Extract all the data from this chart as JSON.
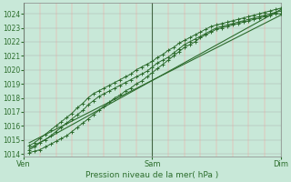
{
  "xlabel": "Pression niveau de la mer( hPa )",
  "bg_color": "#c8e8d8",
  "plot_bg_color": "#c8e8d8",
  "line_color": "#2d6b2d",
  "ylim": [
    1013.8,
    1024.8
  ],
  "yticks": [
    1014,
    1015,
    1016,
    1017,
    1018,
    1019,
    1020,
    1021,
    1022,
    1023,
    1024
  ],
  "day_labels": [
    "Ven",
    "Sam",
    "Dim"
  ],
  "day_positions": [
    0,
    48,
    96
  ],
  "total_hours": 96,
  "lines": [
    {
      "x": [
        2,
        4,
        6,
        8,
        10,
        12,
        14,
        16,
        18,
        20,
        22,
        24,
        26,
        28,
        30,
        32,
        34,
        36,
        38,
        40,
        42,
        44,
        46,
        48,
        50,
        52,
        54,
        56,
        58,
        60,
        62,
        64,
        66,
        68,
        70,
        72,
        74,
        76,
        78,
        80,
        82,
        84,
        86,
        88,
        90,
        92,
        94,
        96
      ],
      "y": [
        1014.3,
        1014.5,
        1014.8,
        1015.0,
        1015.3,
        1015.6,
        1015.9,
        1016.2,
        1016.5,
        1016.8,
        1017.1,
        1017.5,
        1017.8,
        1018.1,
        1018.3,
        1018.5,
        1018.7,
        1018.9,
        1019.1,
        1019.3,
        1019.5,
        1019.7,
        1019.9,
        1020.2,
        1020.5,
        1020.7,
        1020.9,
        1021.2,
        1021.5,
        1021.8,
        1022.0,
        1022.2,
        1022.4,
        1022.6,
        1022.8,
        1023.0,
        1023.1,
        1023.2,
        1023.3,
        1023.4,
        1023.5,
        1023.6,
        1023.7,
        1023.8,
        1023.9,
        1024.0,
        1024.1,
        1024.2
      ],
      "markers": true
    },
    {
      "x": [
        2,
        4,
        6,
        8,
        10,
        12,
        14,
        16,
        18,
        20,
        22,
        24,
        26,
        28,
        30,
        32,
        34,
        36,
        38,
        40,
        42,
        44,
        46,
        48,
        50,
        52,
        54,
        56,
        58,
        60,
        62,
        64,
        66,
        68,
        70,
        72,
        74,
        76,
        78,
        80,
        82,
        84,
        86,
        88,
        90,
        92,
        94,
        96
      ],
      "y": [
        1014.6,
        1014.8,
        1015.1,
        1015.4,
        1015.7,
        1016.0,
        1016.3,
        1016.6,
        1016.9,
        1017.3,
        1017.6,
        1018.0,
        1018.3,
        1018.5,
        1018.7,
        1018.9,
        1019.1,
        1019.3,
        1019.5,
        1019.7,
        1020.0,
        1020.2,
        1020.4,
        1020.6,
        1020.9,
        1021.1,
        1021.4,
        1021.6,
        1021.9,
        1022.1,
        1022.3,
        1022.5,
        1022.7,
        1022.9,
        1023.1,
        1023.2,
        1023.3,
        1023.4,
        1023.5,
        1023.6,
        1023.7,
        1023.8,
        1023.9,
        1024.0,
        1024.1,
        1024.2,
        1024.3,
        1024.4
      ],
      "markers": true
    },
    {
      "x": [
        2,
        4,
        6,
        8,
        10,
        12,
        14,
        16,
        18,
        20,
        22,
        24,
        26,
        28,
        30,
        32,
        34,
        36,
        38,
        40,
        42,
        44,
        46,
        48,
        50,
        52,
        54,
        56,
        58,
        60,
        62,
        64,
        66,
        68,
        70,
        72,
        74,
        76,
        78,
        80,
        82,
        84,
        86,
        88,
        90,
        92,
        94,
        96
      ],
      "y": [
        1014.1,
        1014.2,
        1014.3,
        1014.5,
        1014.7,
        1014.9,
        1015.1,
        1015.3,
        1015.6,
        1015.9,
        1016.2,
        1016.5,
        1016.8,
        1017.1,
        1017.4,
        1017.7,
        1018.0,
        1018.2,
        1018.5,
        1018.7,
        1019.0,
        1019.2,
        1019.5,
        1019.8,
        1020.1,
        1020.4,
        1020.7,
        1021.0,
        1021.3,
        1021.6,
        1021.8,
        1022.0,
        1022.3,
        1022.5,
        1022.7,
        1022.9,
        1023.0,
        1023.1,
        1023.2,
        1023.3,
        1023.4,
        1023.5,
        1023.6,
        1023.7,
        1023.8,
        1023.9,
        1024.0,
        1024.0
      ],
      "markers": true
    },
    {
      "x": [
        2,
        96
      ],
      "y": [
        1014.4,
        1024.3
      ],
      "markers": false
    },
    {
      "x": [
        2,
        96
      ],
      "y": [
        1014.8,
        1023.9
      ],
      "markers": false
    }
  ]
}
